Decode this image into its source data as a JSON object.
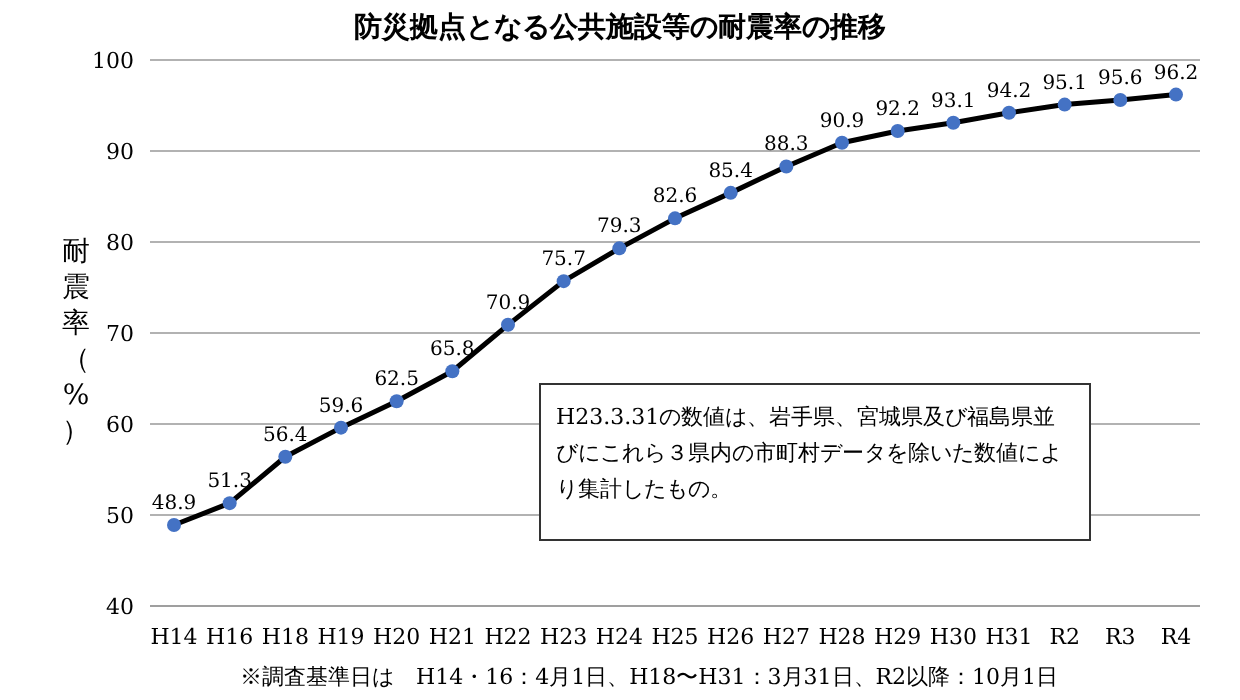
{
  "chart_data": {
    "type": "line",
    "title": "防災拠点となる公共施設等の耐震率の推移",
    "ylabel": "耐震率（%）",
    "categories": [
      "H14",
      "H16",
      "H18",
      "H19",
      "H20",
      "H21",
      "H22",
      "H23",
      "H24",
      "H25",
      "H26",
      "H27",
      "H28",
      "H29",
      "H30",
      "H31",
      "R2",
      "R3",
      "R4"
    ],
    "series": [
      {
        "color": "#000000",
        "values": [
          48.9,
          51.3,
          56.4,
          59.6,
          62.5,
          65.8,
          70.9,
          75.7,
          79.3,
          82.6,
          85.4,
          88.3,
          90.9,
          92.2,
          93.1,
          94.2,
          95.1,
          95.6,
          96.2
        ]
      }
    ],
    "ylim": [
      40,
      100
    ],
    "yticks": [
      40,
      50,
      60,
      70,
      80,
      90,
      100
    ],
    "grid": "y",
    "marker": "circle",
    "line_style": "solid",
    "data_labels": true,
    "annotations": [
      "H23.3.31の数値は、岩手県、宮城県及び福島県並びにこれら３県内の市町村データを除いた数値により集計したもの。",
      "※調査基準日は　H14・16：4月1日、H18〜H31：3月31日、R2以降：10月1日"
    ]
  }
}
